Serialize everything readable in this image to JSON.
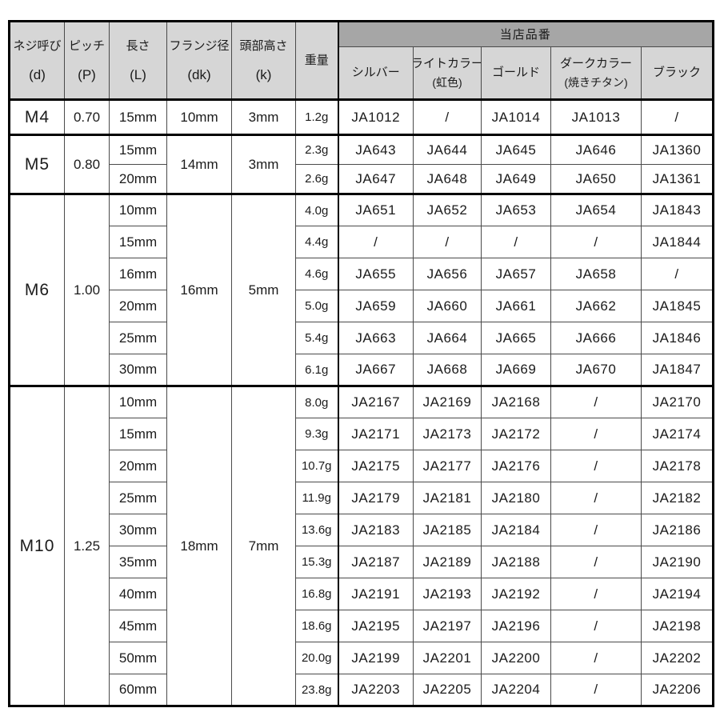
{
  "table": {
    "header": {
      "spec_columns": [
        {
          "line1": "ネジ呼び",
          "line2": "(d)"
        },
        {
          "line1": "ピッチ",
          "line2": "(P)"
        },
        {
          "line1": "長さ",
          "line2": "(L)"
        },
        {
          "line1": "フランジ径",
          "line2": "(dk)"
        },
        {
          "line1": "頭部高さ",
          "line2": "(k)"
        }
      ],
      "weight_label": "重量",
      "group_label": "当店品番",
      "color_columns": [
        {
          "line1": "シルバー",
          "line2": ""
        },
        {
          "line1": "ライトカラー",
          "line2": "(虹色)"
        },
        {
          "line1": "ゴールド",
          "line2": ""
        },
        {
          "line1": "ダークカラー",
          "line2": "(焼きチタン)"
        },
        {
          "line1": "ブラック",
          "line2": ""
        }
      ]
    },
    "sections": [
      {
        "size": "M4",
        "pitch": "0.70",
        "flange": "10mm",
        "head": "3mm",
        "rows": [
          {
            "length": "15mm",
            "weight": "1.2g",
            "parts": [
              "JA1012",
              "/",
              "JA1014",
              "JA1013",
              "/"
            ]
          }
        ]
      },
      {
        "size": "M5",
        "pitch": "0.80",
        "flange": "14mm",
        "head": "3mm",
        "rows": [
          {
            "length": "15mm",
            "weight": "2.3g",
            "parts": [
              "JA643",
              "JA644",
              "JA645",
              "JA646",
              "JA1360"
            ]
          },
          {
            "length": "20mm",
            "weight": "2.6g",
            "parts": [
              "JA647",
              "JA648",
              "JA649",
              "JA650",
              "JA1361"
            ]
          }
        ]
      },
      {
        "size": "M6",
        "pitch": "1.00",
        "flange": "16mm",
        "head": "5mm",
        "rows": [
          {
            "length": "10mm",
            "weight": "4.0g",
            "parts": [
              "JA651",
              "JA652",
              "JA653",
              "JA654",
              "JA1843"
            ]
          },
          {
            "length": "15mm",
            "weight": "4.4g",
            "parts": [
              "/",
              "/",
              "/",
              "/",
              "JA1844"
            ]
          },
          {
            "length": "16mm",
            "weight": "4.6g",
            "parts": [
              "JA655",
              "JA656",
              "JA657",
              "JA658",
              "/"
            ]
          },
          {
            "length": "20mm",
            "weight": "5.0g",
            "parts": [
              "JA659",
              "JA660",
              "JA661",
              "JA662",
              "JA1845"
            ]
          },
          {
            "length": "25mm",
            "weight": "5.4g",
            "parts": [
              "JA663",
              "JA664",
              "JA665",
              "JA666",
              "JA1846"
            ]
          },
          {
            "length": "30mm",
            "weight": "6.1g",
            "parts": [
              "JA667",
              "JA668",
              "JA669",
              "JA670",
              "JA1847"
            ]
          }
        ]
      },
      {
        "size": "M10",
        "pitch": "1.25",
        "flange": "18mm",
        "head": "7mm",
        "rows": [
          {
            "length": "10mm",
            "weight": "8.0g",
            "parts": [
              "JA2167",
              "JA2169",
              "JA2168",
              "/",
              "JA2170"
            ]
          },
          {
            "length": "15mm",
            "weight": "9.3g",
            "parts": [
              "JA2171",
              "JA2173",
              "JA2172",
              "/",
              "JA2174"
            ]
          },
          {
            "length": "20mm",
            "weight": "10.7g",
            "parts": [
              "JA2175",
              "JA2177",
              "JA2176",
              "/",
              "JA2178"
            ]
          },
          {
            "length": "25mm",
            "weight": "11.9g",
            "parts": [
              "JA2179",
              "JA2181",
              "JA2180",
              "/",
              "JA2182"
            ]
          },
          {
            "length": "30mm",
            "weight": "13.6g",
            "parts": [
              "JA2183",
              "JA2185",
              "JA2184",
              "/",
              "JA2186"
            ]
          },
          {
            "length": "35mm",
            "weight": "15.3g",
            "parts": [
              "JA2187",
              "JA2189",
              "JA2188",
              "/",
              "JA2190"
            ]
          },
          {
            "length": "40mm",
            "weight": "16.8g",
            "parts": [
              "JA2191",
              "JA2193",
              "JA2192",
              "/",
              "JA2194"
            ]
          },
          {
            "length": "45mm",
            "weight": "18.6g",
            "parts": [
              "JA2195",
              "JA2197",
              "JA2196",
              "/",
              "JA2198"
            ]
          },
          {
            "length": "50mm",
            "weight": "20.0g",
            "parts": [
              "JA2199",
              "JA2201",
              "JA2200",
              "/",
              "JA2202"
            ]
          },
          {
            "length": "60mm",
            "weight": "23.8g",
            "parts": [
              "JA2203",
              "JA2205",
              "JA2204",
              "/",
              "JA2206"
            ]
          }
        ]
      }
    ],
    "colors": {
      "header_bg": "#d6d6d6",
      "group_header_bg": "#a6a6a6",
      "cell_bg": "#ffffff",
      "border": "#000000"
    }
  }
}
